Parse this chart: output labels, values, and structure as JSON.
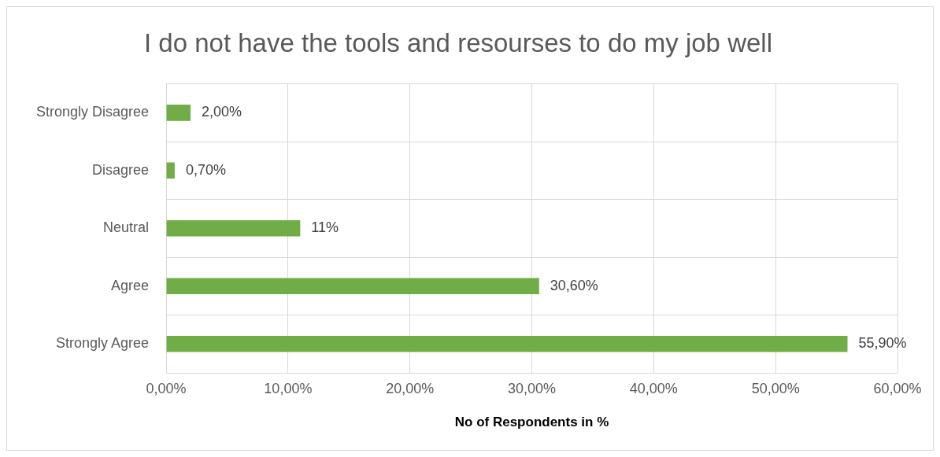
{
  "chart_data": {
    "type": "bar",
    "orientation": "horizontal",
    "title": "I do not have the tools and resourses to do my job well",
    "xlabel": "No of Respondents in %",
    "categories": [
      "Strongly Disagree",
      "Disagree",
      "Neutral",
      "Agree",
      "Strongly Agree"
    ],
    "values": [
      2,
      0.7,
      11,
      30.6,
      55.9
    ],
    "value_labels": [
      "2,00%",
      "0,70%",
      "11%",
      "30,60%",
      "55,90%"
    ],
    "color": "#70ad47",
    "xlim": [
      0,
      60
    ],
    "xticks": [
      {
        "value": 0,
        "label": "0,00%"
      },
      {
        "value": 10,
        "label": "10,00%"
      },
      {
        "value": 20,
        "label": "20,00%"
      },
      {
        "value": 30,
        "label": "30,00%"
      },
      {
        "value": 40,
        "label": "40,00%"
      },
      {
        "value": 50,
        "label": "50,00%"
      },
      {
        "value": 60,
        "label": "60,00%"
      }
    ],
    "grid": true,
    "legend": false
  }
}
